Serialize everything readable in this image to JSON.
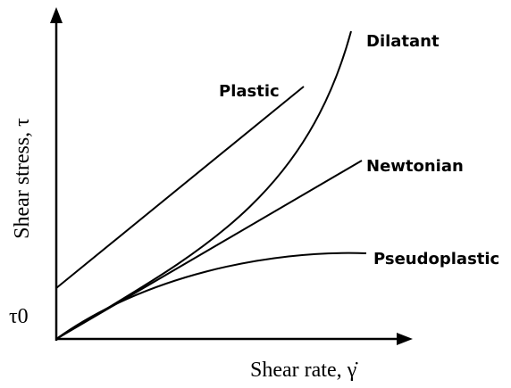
{
  "x_axis_label": "Shear rate, γ̇",
  "y_axis_label": "Shear stress, τ",
  "y_intercept_label": "τ0",
  "curves": [
    {
      "label": "Plastic"
    },
    {
      "label": "Dilatant"
    },
    {
      "label": "Newtonian"
    },
    {
      "label": "Pseudoplastic"
    }
  ]
}
